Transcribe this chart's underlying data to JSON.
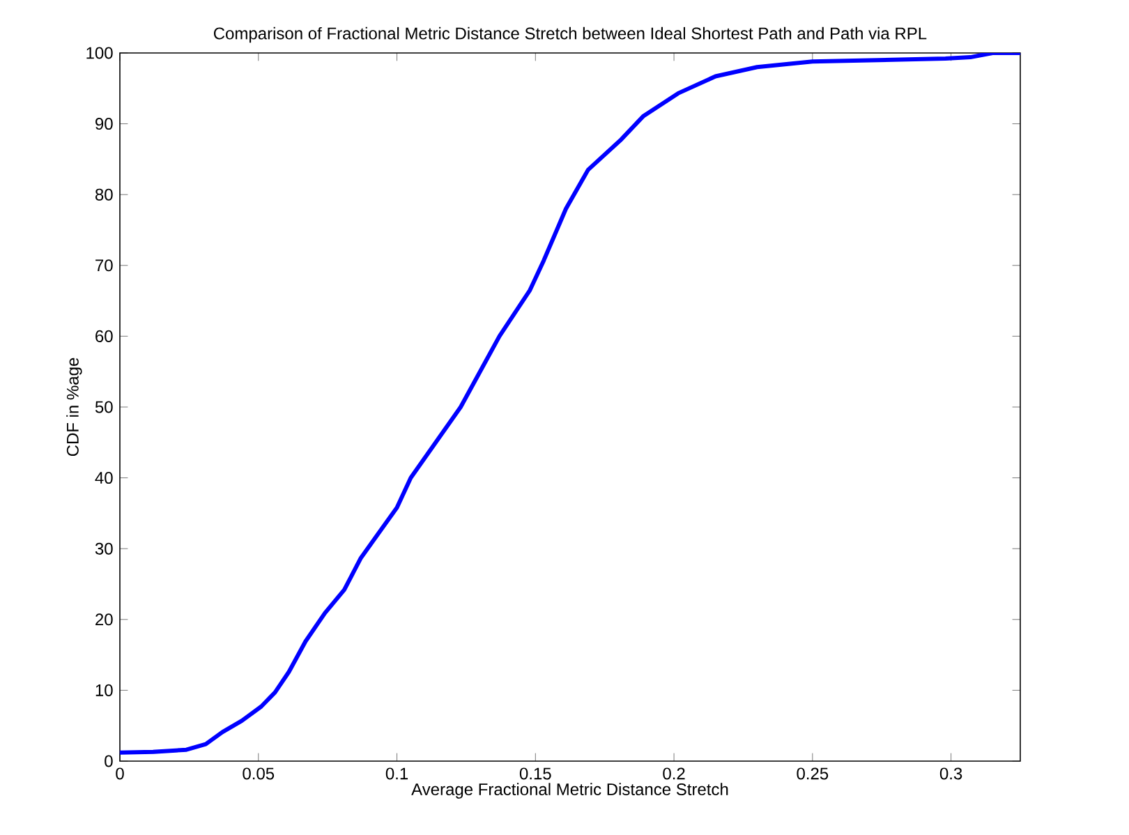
{
  "chart_data": {
    "type": "line",
    "title": "Comparison of Fractional Metric Distance Stretch between Ideal Shortest Path and Path via RPL",
    "xlabel": "Average Fractional Metric Distance Stretch",
    "ylabel": "CDF in %age",
    "xlim": [
      0,
      0.325
    ],
    "xticks": [
      0,
      0.05,
      0.1,
      0.15,
      0.2,
      0.25,
      0.3
    ],
    "ylim": [
      0,
      100
    ],
    "yticks": [
      0,
      10,
      20,
      30,
      40,
      50,
      60,
      70,
      80,
      90,
      100
    ],
    "marker": "none",
    "line_style": "solid",
    "series": [
      {
        "color": "#0000ff",
        "x": [
          0,
          0.012,
          0.024,
          0.031,
          0.037,
          0.044,
          0.051,
          0.056,
          0.061,
          0.067,
          0.074,
          0.081,
          0.087,
          0.1,
          0.105,
          0.123,
          0.137,
          0.148,
          0.153,
          0.161,
          0.169,
          0.181,
          0.189,
          0.2015,
          0.215,
          0.23,
          0.25,
          0.298,
          0.307,
          0.315,
          0.325
        ],
        "values": [
          1.2,
          1.3,
          1.6,
          2.4,
          4.1,
          5.7,
          7.7,
          9.7,
          12.6,
          16.9,
          20.9,
          24.2,
          28.7,
          35.8,
          40,
          50,
          60,
          66.5,
          70.7,
          78,
          83.5,
          87.8,
          91.1,
          94.3,
          96.7,
          98,
          98.8,
          99.2,
          99.4,
          100,
          100
        ]
      }
    ]
  }
}
